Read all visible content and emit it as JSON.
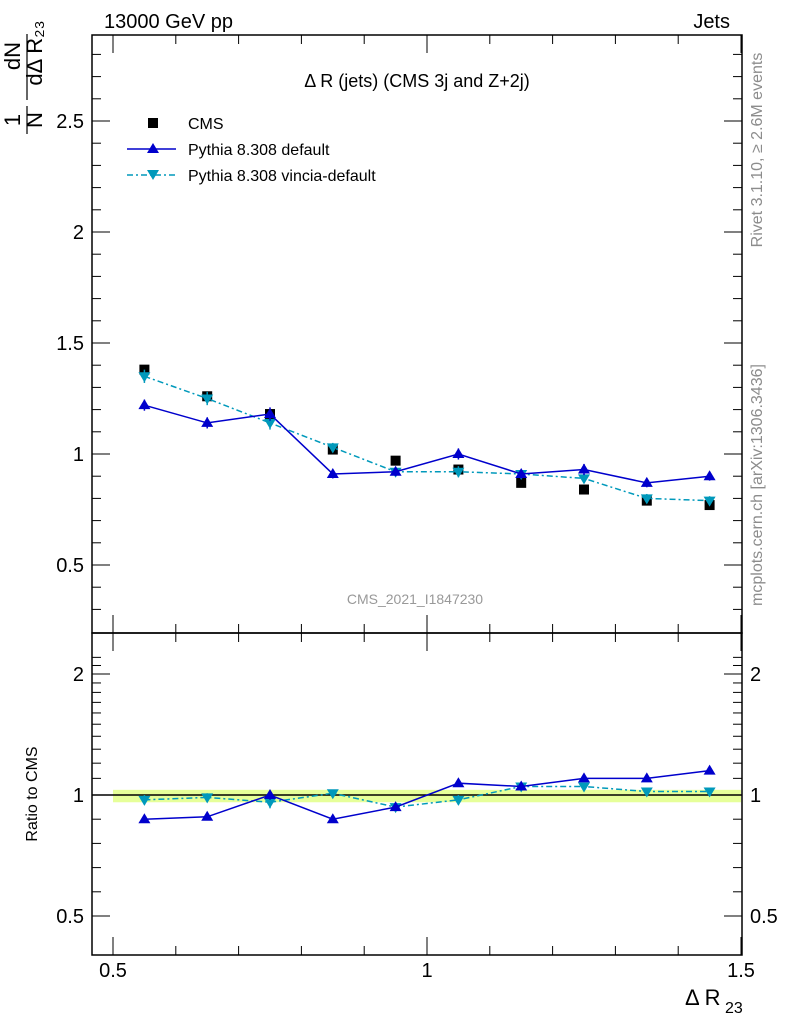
{
  "header": {
    "left": "13000 GeV pp",
    "right": "Jets"
  },
  "side_labels": {
    "top": "Rivet 3.1.10, ≥ 2.6M events",
    "bottom": "mcplots.cern.ch [arXiv:1306.3436]"
  },
  "chart_data": [
    {
      "type": "scatter",
      "title": "Δ R (jets) (CMS 3j and Z+2j)",
      "watermark": "CMS_2021_I1847230",
      "xlabel": "Δ R23",
      "ylabel": "1/N dN/dΔ R23",
      "xlim": [
        0.5,
        1.5
      ],
      "ylim": [
        0.2,
        2.9
      ],
      "y_ticks": [
        "0.5",
        "1",
        "1.5",
        "2",
        "2.5"
      ],
      "legend_position": "top-left",
      "colors": {
        "data": "#000000",
        "default": "#0000cc",
        "vincia": "#0099bb"
      },
      "x": [
        0.55,
        0.65,
        0.75,
        0.85,
        0.95,
        1.05,
        1.15,
        1.25,
        1.35,
        1.45
      ],
      "series": [
        {
          "name": "CMS",
          "style": "markers",
          "values": [
            1.38,
            1.26,
            1.18,
            1.02,
            0.97,
            0.93,
            0.87,
            0.84,
            0.79,
            0.77
          ]
        },
        {
          "name": "Pythia 8.308 default",
          "style": "solid",
          "values": [
            1.22,
            1.14,
            1.18,
            0.91,
            0.92,
            1.0,
            0.91,
            0.93,
            0.87,
            0.9
          ],
          "errors": [
            0.025,
            0.025,
            0.03,
            0.02,
            0.02,
            0.025,
            0.02,
            0.025,
            0.02,
            0.02
          ]
        },
        {
          "name": "Pythia 8.308 vincia-default",
          "style": "dashdot",
          "values": [
            1.35,
            1.25,
            1.14,
            1.03,
            0.92,
            0.92,
            0.91,
            0.89,
            0.8,
            0.79
          ],
          "errors": [
            0.03,
            0.03,
            0.03,
            0.02,
            0.02,
            0.025,
            0.02,
            0.02,
            0.02,
            0.02
          ]
        }
      ]
    },
    {
      "type": "line",
      "ylabel": "Ratio to CMS",
      "xlabel": "Δ R23",
      "xlim": [
        0.5,
        1.5
      ],
      "ylim": [
        0.4,
        2.3
      ],
      "x_ticks": [
        "0.5",
        "1",
        "1.5"
      ],
      "y_ticks": [
        "0.5",
        "1",
        "2"
      ],
      "reference": 1.0,
      "band_color": "#e6ff99",
      "x": [
        0.55,
        0.65,
        0.75,
        0.85,
        0.95,
        1.05,
        1.15,
        1.25,
        1.35,
        1.45
      ],
      "series": [
        {
          "name": "Pythia 8.308 default",
          "values": [
            0.9,
            0.91,
            1.0,
            0.9,
            0.95,
            1.07,
            1.05,
            1.1,
            1.1,
            1.15
          ],
          "errors": [
            0.015,
            0.015,
            0.02,
            0.015,
            0.015,
            0.02,
            0.015,
            0.02,
            0.02,
            0.02
          ]
        },
        {
          "name": "Pythia 8.308 vincia-default",
          "values": [
            0.98,
            0.99,
            0.97,
            1.01,
            0.95,
            0.98,
            1.05,
            1.05,
            1.02,
            1.02
          ],
          "errors": [
            0.02,
            0.02,
            0.025,
            0.015,
            0.015,
            0.02,
            0.015,
            0.02,
            0.02,
            0.02
          ]
        }
      ]
    }
  ]
}
